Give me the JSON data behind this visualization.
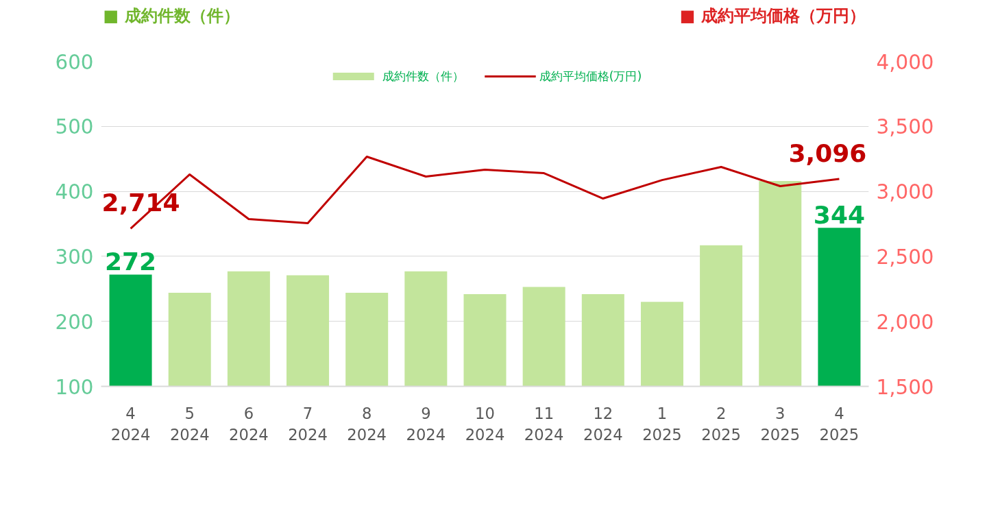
{
  "chart_data": {
    "type": "bar",
    "ylabel": "■ 成約件数（件）",
    "y2label": "■ 成約平均価格（万円）",
    "categories": [
      "4\n2024",
      "5\n2024",
      "6\n2024",
      "7\n2024",
      "8\n2024",
      "9\n2024",
      "10\n2024",
      "11\n2024",
      "12\n2024",
      "1\n2025",
      "2\n2025",
      "3\n2025",
      "4\n2025"
    ],
    "series": [
      {
        "name": "成約件数（件）",
        "color": "#c3e59c",
        "colors": [
          "#00b050",
          "#c3e59c",
          "#c3e59c",
          "#c3e59c",
          "#c3e59c",
          "#c3e59c",
          "#c3e59c",
          "#c3e59c",
          "#c3e59c",
          "#c3e59c",
          "#c3e59c",
          "#c3e59c",
          "#00b050"
        ],
        "values": [
          272,
          244,
          277,
          271,
          244,
          277,
          242,
          253,
          242,
          230,
          317,
          416,
          344
        ],
        "value_labels": [
          "272",
          null,
          null,
          null,
          null,
          null,
          null,
          null,
          null,
          null,
          null,
          null,
          "344"
        ]
      },
      {
        "name": "成約平均価格(万円)",
        "type": "line",
        "axis": "y2",
        "color": "#c00000",
        "values": [
          2714,
          3130,
          2787,
          2755,
          3267,
          3114,
          3167,
          3140,
          2945,
          3087,
          3188,
          3040,
          3096
        ],
        "value_labels": [
          "2,714",
          null,
          null,
          null,
          null,
          null,
          null,
          null,
          null,
          null,
          null,
          null,
          "3,096"
        ]
      }
    ],
    "ylim": [
      100,
      600
    ],
    "yticks": [
      100,
      200,
      300,
      400,
      500,
      600
    ],
    "y2lim": [
      1500,
      4000
    ],
    "y2ticks": [
      {
        "value": 1500,
        "label": "1,500"
      },
      {
        "value": 2000,
        "label": "2,000"
      },
      {
        "value": 2500,
        "label": "2,500"
      },
      {
        "value": 3000,
        "label": "3,000"
      },
      {
        "value": 3500,
        "label": "3,500"
      },
      {
        "value": 4000,
        "label": "4,000"
      }
    ],
    "grid": "y",
    "legend": "top",
    "marker": "none",
    "line_style": "solid"
  }
}
